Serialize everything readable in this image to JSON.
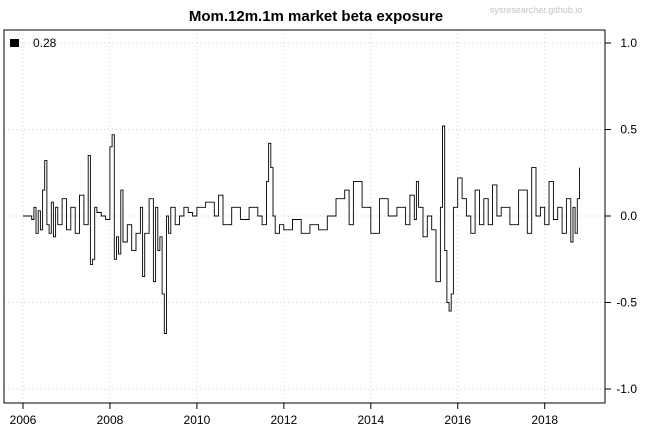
{
  "chart_data": {
    "type": "line",
    "title": "Mom.12m.1m market beta exposure",
    "watermark": "sysresearcher.github.io",
    "xlim": [
      2006,
      2018.95
    ],
    "ylim": [
      -1.0,
      1.0
    ],
    "x_ticks": [
      "2006",
      "2008",
      "2010",
      "2012",
      "2014",
      "2016",
      "2018"
    ],
    "y_ticks": [
      "1.0",
      "0.5",
      "0.0",
      "-0.5",
      "-1.0"
    ],
    "grid": true,
    "legend": {
      "position": "top-left",
      "entries": [
        {
          "label": "0.28",
          "color": "#000000"
        }
      ]
    },
    "series": [
      {
        "color": "#000000",
        "x": [
          2006.0,
          2006.1,
          2006.2,
          2006.25,
          2006.3,
          2006.35,
          2006.4,
          2006.45,
          2006.5,
          2006.55,
          2006.6,
          2006.65,
          2006.7,
          2006.75,
          2006.8,
          2006.9,
          2007.0,
          2007.1,
          2007.2,
          2007.3,
          2007.4,
          2007.5,
          2007.55,
          2007.6,
          2007.65,
          2007.7,
          2007.8,
          2007.9,
          2008.0,
          2008.05,
          2008.1,
          2008.15,
          2008.2,
          2008.25,
          2008.3,
          2008.4,
          2008.5,
          2008.6,
          2008.7,
          2008.75,
          2008.8,
          2008.9,
          2009.0,
          2009.05,
          2009.1,
          2009.15,
          2009.2,
          2009.25,
          2009.3,
          2009.35,
          2009.4,
          2009.5,
          2009.6,
          2009.7,
          2009.8,
          2009.9,
          2010.0,
          2010.2,
          2010.4,
          2010.5,
          2010.6,
          2010.8,
          2011.0,
          2011.2,
          2011.4,
          2011.5,
          2011.6,
          2011.65,
          2011.7,
          2011.75,
          2011.8,
          2011.9,
          2012.0,
          2012.2,
          2012.4,
          2012.6,
          2012.8,
          2013.0,
          2013.2,
          2013.4,
          2013.5,
          2013.6,
          2013.8,
          2014.0,
          2014.2,
          2014.4,
          2014.6,
          2014.8,
          2014.9,
          2015.0,
          2015.05,
          2015.1,
          2015.2,
          2015.3,
          2015.4,
          2015.5,
          2015.6,
          2015.65,
          2015.7,
          2015.75,
          2015.8,
          2015.85,
          2015.9,
          2016.0,
          2016.1,
          2016.2,
          2016.3,
          2016.4,
          2016.5,
          2016.6,
          2016.7,
          2016.8,
          2016.9,
          2017.0,
          2017.2,
          2017.4,
          2017.6,
          2017.7,
          2017.8,
          2017.9,
          2018.0,
          2018.1,
          2018.2,
          2018.3,
          2018.4,
          2018.5,
          2018.6,
          2018.65,
          2018.7,
          2018.75,
          2018.8
        ],
        "y": [
          0.0,
          0.0,
          -0.02,
          0.05,
          -0.1,
          0.03,
          -0.08,
          0.15,
          0.32,
          -0.05,
          -0.1,
          0.08,
          -0.12,
          0.05,
          -0.05,
          0.1,
          -0.08,
          0.05,
          -0.1,
          0.12,
          -0.05,
          0.35,
          -0.28,
          -0.25,
          0.05,
          0.02,
          0.0,
          -0.02,
          0.4,
          0.47,
          -0.25,
          -0.12,
          -0.22,
          0.15,
          -0.15,
          -0.05,
          -0.2,
          -0.1,
          0.05,
          -0.35,
          -0.1,
          0.1,
          -0.38,
          0.05,
          -0.2,
          -0.12,
          -0.45,
          -0.68,
          0.0,
          -0.1,
          0.05,
          -0.05,
          0.0,
          0.05,
          0.02,
          0.0,
          0.05,
          0.08,
          0.0,
          0.12,
          -0.05,
          0.05,
          -0.02,
          0.05,
          0.0,
          -0.05,
          0.2,
          0.42,
          0.28,
          0.0,
          -0.1,
          -0.05,
          -0.08,
          -0.02,
          -0.1,
          -0.05,
          -0.08,
          0.0,
          0.1,
          0.15,
          -0.05,
          0.2,
          0.05,
          -0.1,
          0.1,
          0.0,
          0.05,
          -0.05,
          0.12,
          -0.02,
          0.2,
          0.05,
          -0.12,
          0.0,
          -0.08,
          -0.38,
          0.05,
          0.52,
          -0.2,
          -0.5,
          -0.55,
          -0.45,
          0.05,
          0.22,
          0.1,
          0.0,
          -0.1,
          0.15,
          -0.05,
          0.1,
          -0.05,
          0.18,
          0.0,
          0.05,
          -0.05,
          0.15,
          -0.1,
          0.28,
          0.0,
          0.05,
          -0.05,
          0.2,
          -0.02,
          0.05,
          -0.1,
          0.1,
          -0.15,
          0.05,
          -0.1,
          0.1,
          0.28
        ]
      }
    ]
  }
}
